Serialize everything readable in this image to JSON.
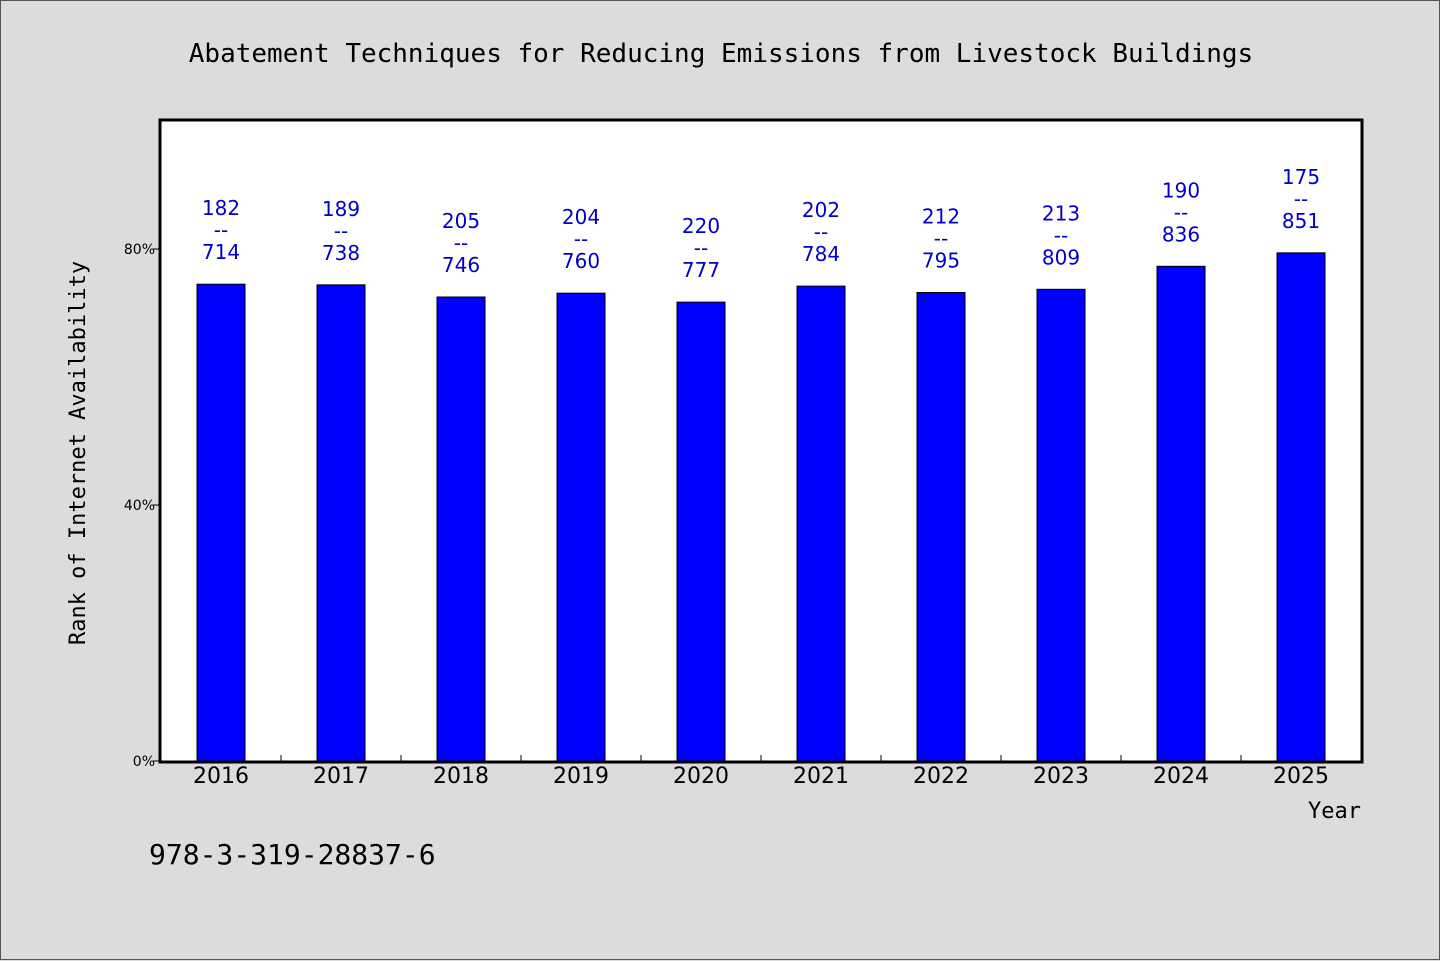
{
  "colors": {
    "background": "#dcdcdc",
    "plot_background": "#ffffff",
    "bar": "#0000ff",
    "label": "#0000cc"
  },
  "footnote": "978-3-319-28837-6",
  "chart_data": {
    "type": "bar",
    "title": "Abatement Techniques for Reducing Emissions from Livestock Buildings",
    "xlabel": "Year",
    "ylabel": "Rank of Internet Availability",
    "ylim": [
      0,
      100
    ],
    "yticks": [
      0,
      40,
      80
    ],
    "ytick_labels": [
      "0%",
      "40%",
      "80%"
    ],
    "grid": false,
    "categories": [
      "2016",
      "2017",
      "2018",
      "2019",
      "2020",
      "2021",
      "2022",
      "2023",
      "2024",
      "2025"
    ],
    "values": [
      74.5,
      74.4,
      72.5,
      73.1,
      71.7,
      74.2,
      73.2,
      73.7,
      77.3,
      79.4
    ],
    "data_labels": [
      [
        "182",
        "--",
        "714"
      ],
      [
        "189",
        "--",
        "738"
      ],
      [
        "205",
        "--",
        "746"
      ],
      [
        "204",
        "--",
        "760"
      ],
      [
        "220",
        "--",
        "777"
      ],
      [
        "202",
        "--",
        "784"
      ],
      [
        "212",
        "--",
        "795"
      ],
      [
        "213",
        "--",
        "809"
      ],
      [
        "190",
        "--",
        "836"
      ],
      [
        "175",
        "--",
        "851"
      ]
    ]
  }
}
